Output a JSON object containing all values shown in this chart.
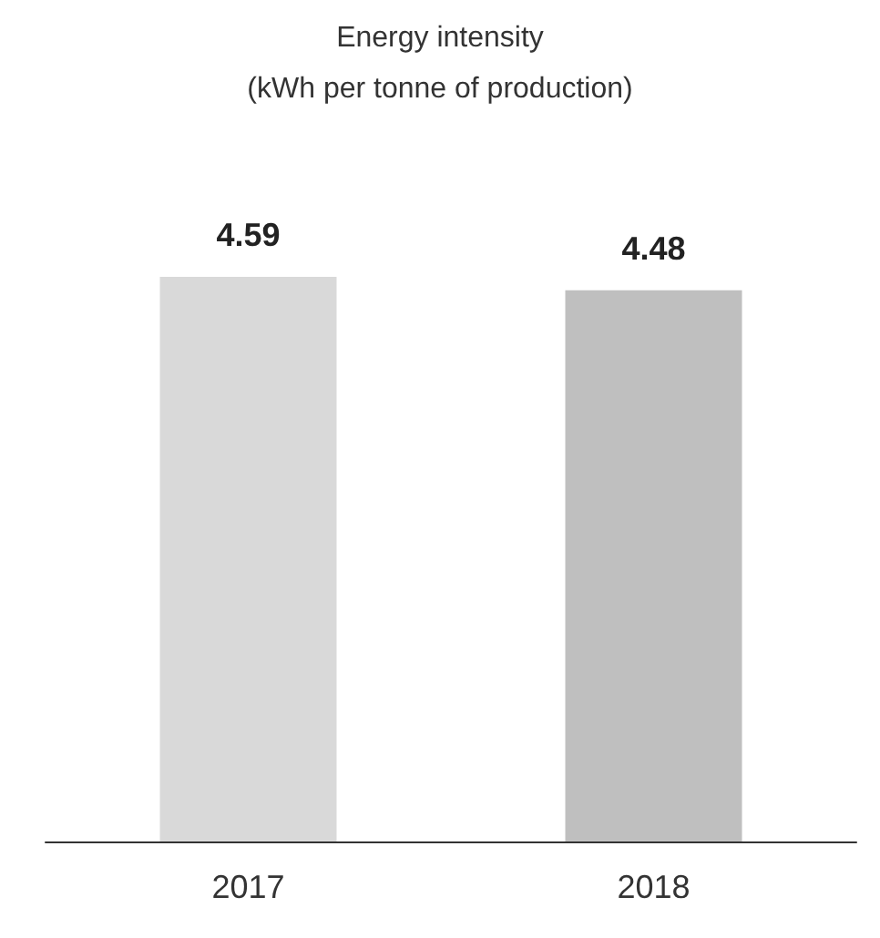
{
  "chart_data": {
    "type": "bar",
    "title": "Energy intensity",
    "subtitle": "(kWh per tonne of production)",
    "categories": [
      "2017",
      "2018"
    ],
    "values": [
      4.59,
      4.48
    ],
    "colors": [
      "#d9d9d9",
      "#bfbfbf"
    ],
    "data_labels": true
  }
}
